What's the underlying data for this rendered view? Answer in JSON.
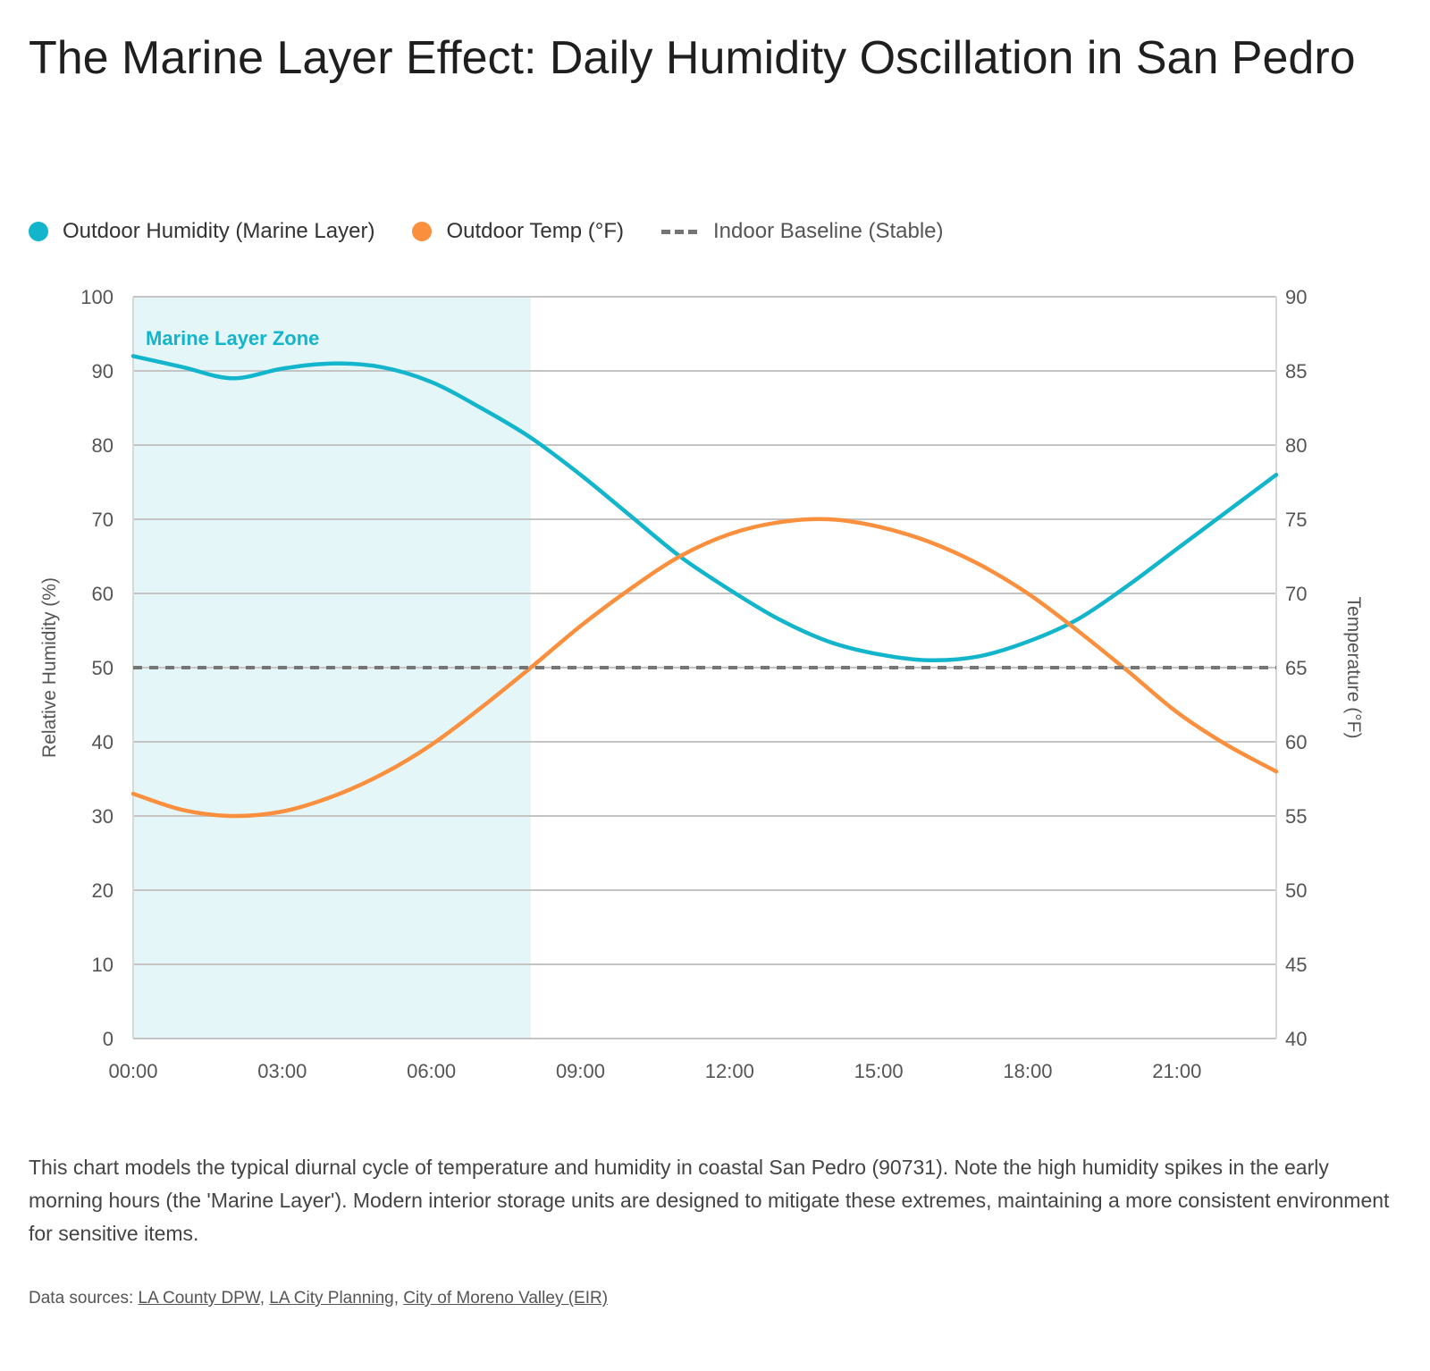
{
  "title": "The Marine Layer Effect: Daily Humidity Oscillation in San Pedro",
  "legend": [
    {
      "label": "Outdoor Humidity (Marine Layer)",
      "color": "#12b5cb",
      "style": "dot"
    },
    {
      "label": "Outdoor Temp (°F)",
      "color": "#fa903e",
      "style": "dot"
    },
    {
      "label": "Indoor Baseline (Stable)",
      "color": "#757575",
      "style": "dash"
    }
  ],
  "chart_data": {
    "type": "line",
    "title": "The Marine Layer Effect: Daily Humidity Oscillation in San Pedro",
    "x": [
      0,
      1,
      2,
      3,
      4,
      5,
      6,
      7,
      8,
      9,
      10,
      11,
      12,
      13,
      14,
      15,
      16,
      17,
      18,
      19,
      20,
      21,
      22,
      23
    ],
    "x_tick_labels": [
      "00:00",
      "03:00",
      "06:00",
      "09:00",
      "12:00",
      "15:00",
      "18:00",
      "21:00"
    ],
    "x_tick_values": [
      0,
      3,
      6,
      9,
      12,
      15,
      18,
      21
    ],
    "ylabel": "Relative Humidity (%)",
    "ylim": [
      0,
      100
    ],
    "y_ticks": [
      0,
      10,
      20,
      30,
      40,
      50,
      60,
      70,
      80,
      90,
      100
    ],
    "y2label": "Temperature (°F)",
    "y2lim": [
      40,
      90
    ],
    "y2_ticks": [
      40,
      45,
      50,
      55,
      60,
      65,
      70,
      75,
      80,
      85,
      90
    ],
    "grid": true,
    "legend_position": "top-left",
    "series": [
      {
        "name": "Outdoor Humidity (Marine Layer)",
        "axis": "left",
        "color": "#12b5cb",
        "values": [
          92,
          90.5,
          89,
          90.3,
          91,
          90.5,
          88.5,
          85,
          81,
          76,
          70.5,
          65,
          60.5,
          56.5,
          53.5,
          51.8,
          51,
          51.5,
          53.5,
          56.5,
          61,
          66,
          71,
          76
        ]
      },
      {
        "name": "Outdoor Temp (°F)",
        "axis": "right",
        "color": "#fa903e",
        "values": [
          56.5,
          55.4,
          55,
          55.3,
          56.3,
          57.8,
          59.8,
          62.3,
          65,
          67.8,
          70.3,
          72.5,
          74,
          74.8,
          75,
          74.5,
          73.5,
          72,
          70,
          67.5,
          64.8,
          62,
          59.8,
          58
        ]
      },
      {
        "name": "Indoor Baseline (Stable)",
        "axis": "left",
        "color": "#757575",
        "dashed": true,
        "constant": 50
      }
    ],
    "annotations": [
      {
        "label": "Marine Layer Zone",
        "x_range": [
          0,
          8
        ],
        "color": "#12b5cb",
        "fill": "#e5f6f9"
      }
    ]
  },
  "caption": "This chart models the typical diurnal cycle of temperature and humidity in coastal San Pedro (90731). Note the high humidity spikes in the early morning hours (the 'Marine Layer'). Modern interior storage units are designed to mitigate these extremes, maintaining a more consistent environment for sensitive items.",
  "sources": {
    "prefix": "Data sources: ",
    "links": [
      "LA County DPW",
      "LA City Planning",
      "City of Moreno Valley (EIR)"
    ],
    "sep": ", "
  }
}
